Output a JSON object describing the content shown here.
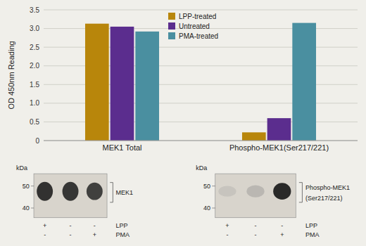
{
  "chart_data": {
    "type": "bar",
    "categories": [
      "MEK1 Total",
      "Phospho-MEK1(Ser217/221)"
    ],
    "series": [
      {
        "name": "LPP-treated",
        "color": "#b8860b",
        "values": [
          3.13,
          0.22
        ]
      },
      {
        "name": "Untreated",
        "color": "#5b2d8e",
        "values": [
          3.05,
          0.6
        ]
      },
      {
        "name": "PMA-treated",
        "color": "#4a8fa0",
        "values": [
          2.92,
          3.15
        ]
      }
    ],
    "y_label": "OD 450nm Reading",
    "ylim": [
      0,
      3.5
    ],
    "yticks": [
      0,
      0.5,
      {
        "value": 1.0,
        "label": "1.0"
      },
      1.5,
      {
        "value": 2.0,
        "label": "2.0"
      },
      2.5,
      {
        "value": 3.0,
        "label": "3.0"
      },
      3.5
    ],
    "grid": true,
    "legend": "upper center",
    "annotations": [
      [
        "kDa",
        "50",
        "40",
        "MEK1",
        "+",
        "-",
        "-",
        "-",
        "-",
        "+",
        "LPP",
        "PMA"
      ],
      [
        "kDa",
        "50",
        "40",
        "Phospho-MEK1",
        "(Ser217/221)",
        "+",
        "-",
        "-",
        "-",
        "-",
        "+",
        "LPP",
        "PMA"
      ]
    ]
  }
}
